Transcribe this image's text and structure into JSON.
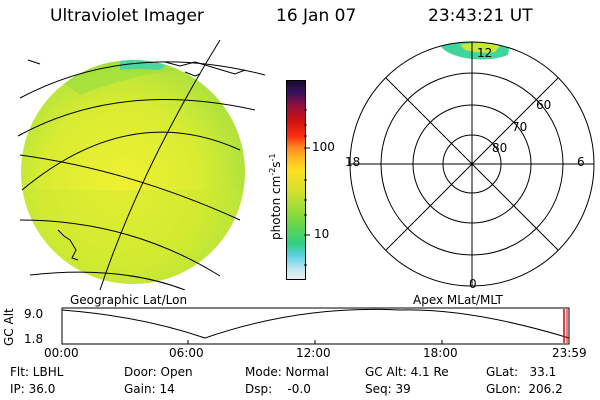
{
  "header": {
    "title": "Ultraviolet Imager",
    "date": "16 Jan 07",
    "time": "23:43:21  UT"
  },
  "colors": {
    "disk_fill": "#c8e63a",
    "disk_fill_light": "#e9ef2e",
    "aurora": "#3fd59c"
  },
  "colorbar": {
    "unit": "photon cm",
    "exp1": "-2",
    "s": "s",
    "exp2": "-1",
    "tick_100": "100",
    "tick_10": "10"
  },
  "polar": {
    "label_12": "12",
    "label_6": "6",
    "label_18": "18",
    "label_0": "0",
    "label_60": "60",
    "label_70": "70",
    "label_80": "80"
  },
  "map_labels": {
    "geographic": "Geographic Lat/Lon",
    "apex": "Apex  MLat/MLT"
  },
  "timeline": {
    "y_label": "GC Alt",
    "y_top": "9.0",
    "y_bottom": "1.8",
    "ticks": [
      "00:00",
      "06:00",
      "12:00",
      "18:00",
      "23:59"
    ]
  },
  "footer": {
    "flt": "Flt: LBHL",
    "ip": "IP: 36.0",
    "door": "Door: Open",
    "gain": "Gain: 14",
    "mode": "Mode: Normal",
    "dsp": "Dsp:    -0.0",
    "gc_alt": "GC Alt: 4.1 Re",
    "seq": "Seq: 39",
    "glat": "GLat:   33.1",
    "glon": "GLon:  206.2"
  }
}
